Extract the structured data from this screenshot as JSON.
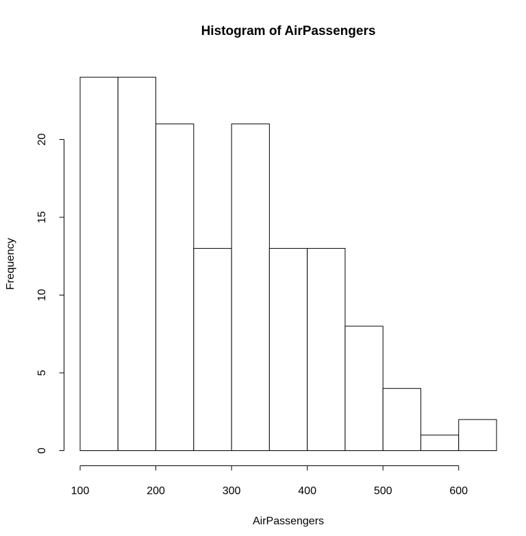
{
  "chart_data": {
    "type": "bar",
    "title": "Histogram of AirPassengers",
    "xlabel": "AirPassengers",
    "ylabel": "Frequency",
    "bins": [
      {
        "from": 100,
        "to": 150,
        "count": 24
      },
      {
        "from": 150,
        "to": 200,
        "count": 24
      },
      {
        "from": 200,
        "to": 250,
        "count": 21
      },
      {
        "from": 250,
        "to": 300,
        "count": 13
      },
      {
        "from": 300,
        "to": 350,
        "count": 21
      },
      {
        "from": 350,
        "to": 400,
        "count": 13
      },
      {
        "from": 400,
        "to": 450,
        "count": 13
      },
      {
        "from": 450,
        "to": 500,
        "count": 8
      },
      {
        "from": 500,
        "to": 550,
        "count": 4
      },
      {
        "from": 550,
        "to": 600,
        "count": 1
      },
      {
        "from": 600,
        "to": 650,
        "count": 2
      }
    ],
    "x_ticks": [
      100,
      200,
      300,
      400,
      500,
      600
    ],
    "y_ticks": [
      0,
      5,
      10,
      15,
      20
    ],
    "xlim": [
      100,
      650
    ],
    "ylim": [
      0,
      24
    ],
    "grid": false,
    "bar_fill": "#ffffff",
    "bar_stroke": "#000000"
  }
}
